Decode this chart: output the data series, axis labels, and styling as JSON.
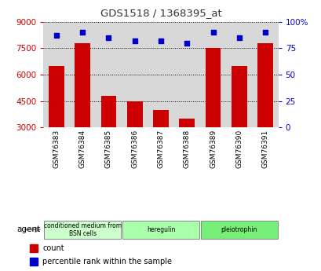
{
  "title": "GDS1518 / 1368395_at",
  "categories": [
    "GSM76383",
    "GSM76384",
    "GSM76385",
    "GSM76386",
    "GSM76387",
    "GSM76388",
    "GSM76389",
    "GSM76390",
    "GSM76391"
  ],
  "bar_values": [
    6500,
    7800,
    4800,
    4500,
    4000,
    3500,
    7500,
    6500,
    7800
  ],
  "dot_values": [
    87,
    90,
    85,
    82,
    82,
    80,
    90,
    85,
    90
  ],
  "ylim_left": [
    3000,
    9000
  ],
  "ylim_right": [
    0,
    100
  ],
  "yticks_left": [
    3000,
    4500,
    6000,
    7500,
    9000
  ],
  "yticks_right": [
    0,
    25,
    50,
    75,
    100
  ],
  "bar_color": "#cc0000",
  "dot_color": "#0000cc",
  "grid_color": "#000000",
  "title_color": "#333333",
  "left_tick_color": "#cc0000",
  "right_tick_color": "#0000cc",
  "agent_groups": [
    {
      "label": "conditioned medium from\nBSN cells",
      "start": 0,
      "end": 3,
      "color": "#ccffcc"
    },
    {
      "label": "heregulin",
      "start": 3,
      "end": 6,
      "color": "#aaffaa"
    },
    {
      "label": "pleiotrophin",
      "start": 6,
      "end": 9,
      "color": "#77ee77"
    }
  ],
  "legend_items": [
    {
      "color": "#cc0000",
      "label": "count"
    },
    {
      "color": "#0000cc",
      "label": "percentile rank within the sample"
    }
  ],
  "bg_color": "#ffffff",
  "plot_bg_color": "#d8d8d8"
}
